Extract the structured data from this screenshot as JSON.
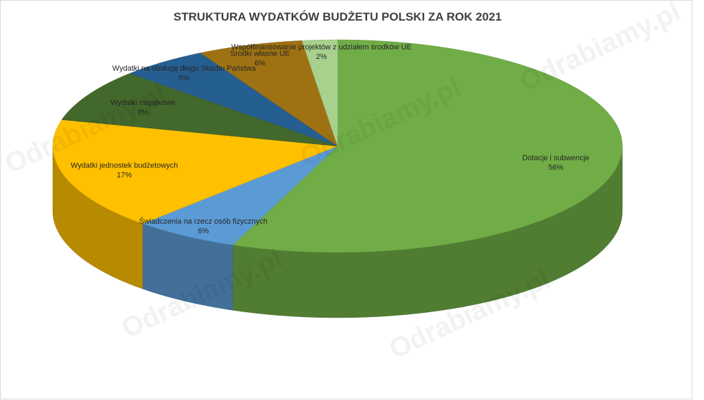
{
  "chart_data": {
    "type": "pie",
    "title": "STRUKTURA WYDATKÓW  BUDŻETU POLSKI ZA ROK 2021",
    "three_d": true,
    "legend": "none",
    "slices": [
      {
        "label": "Dotacje i subwencje",
        "value": 56,
        "value_label": "56%",
        "color": "#70ad47"
      },
      {
        "label": "Świadczenia na rzecz osób fizycznych",
        "value": 6,
        "value_label": "6%",
        "color": "#5b9bd5"
      },
      {
        "label": "Wydatki jednostek budżetowych",
        "value": 17,
        "value_label": "17%",
        "color": "#ffc000"
      },
      {
        "label": "Wydatki majątkowe",
        "value": 8,
        "value_label": "8%",
        "color": "#43682b"
      },
      {
        "label": "Wydatki na obsługę długu Skarbu Państwa",
        "value": 5,
        "value_label": "5%",
        "color": "#255e91"
      },
      {
        "label": "Środki własne UE",
        "value": 6,
        "value_label": "6%",
        "color": "#9e7212"
      },
      {
        "label": "Współfinansowanie projektów z udziałem środków UE",
        "value": 2,
        "value_label": "2%",
        "color": "#a9d18e"
      }
    ]
  },
  "watermark": {
    "text": "Odrabiamy.pl"
  }
}
